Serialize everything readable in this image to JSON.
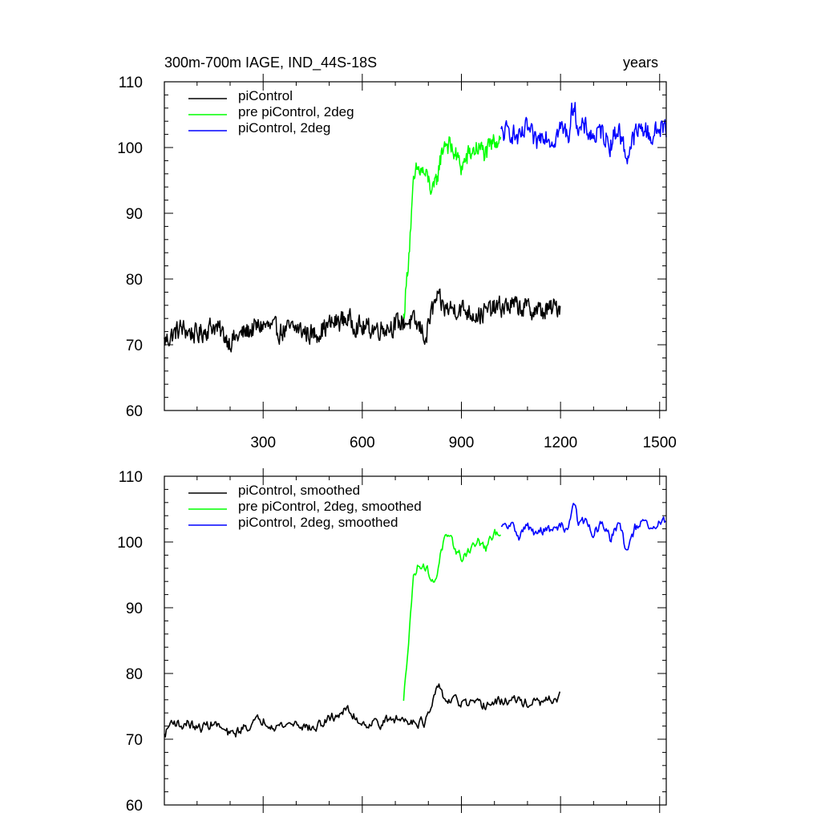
{
  "chart_data": [
    {
      "type": "line",
      "title": "300m-700m IAGE, IND_44S-18S",
      "right_title": "years",
      "xlim": [
        1,
        1520
      ],
      "ylim": [
        60,
        110
      ],
      "xticks": [
        300,
        600,
        900,
        1200,
        1500
      ],
      "yticks": [
        60,
        70,
        80,
        90,
        100,
        110
      ],
      "show_x_tick_labels": true,
      "grid": false,
      "legend_position": "top-left",
      "series": [
        {
          "name": "piControl",
          "color": "#000000",
          "x": [
            1,
            50,
            100,
            150,
            200,
            250,
            300,
            350,
            400,
            450,
            500,
            550,
            600,
            650,
            700,
            725,
            750,
            775,
            795,
            800,
            825,
            850,
            900,
            950,
            1000,
            1050,
            1100,
            1150,
            1200
          ],
          "y": [
            70.5,
            72.5,
            71.5,
            73,
            70.5,
            72,
            73,
            72,
            72.5,
            71.5,
            73,
            74,
            72.5,
            72.5,
            73,
            73.5,
            73.5,
            72.5,
            71,
            73.5,
            77,
            75.5,
            75.5,
            74.5,
            75.5,
            76,
            75.5,
            75,
            76
          ]
        },
        {
          "name": "pre piControl, 2deg",
          "color": "#00ff00",
          "x": [
            725,
            735,
            745,
            755,
            765,
            780,
            800,
            815,
            825,
            835,
            850,
            875,
            900,
            925,
            950,
            975,
            1000,
            1020
          ],
          "y": [
            74,
            80,
            87,
            94,
            96.5,
            96.5,
            95,
            93,
            95,
            98,
            101,
            99.5,
            97,
            99,
            100,
            99,
            101,
            102
          ]
        },
        {
          "name": "piControl, 2deg",
          "color": "#0000ff",
          "x": [
            1020,
            1050,
            1075,
            1100,
            1125,
            1150,
            1175,
            1200,
            1225,
            1240,
            1255,
            1275,
            1300,
            1325,
            1350,
            1375,
            1400,
            1425,
            1450,
            1475,
            1500,
            1520
          ],
          "y": [
            102,
            102.5,
            101,
            103,
            100.5,
            102.5,
            101,
            103,
            102,
            107,
            102.5,
            103,
            101.5,
            102.5,
            100.5,
            103,
            98.5,
            102,
            103,
            101.5,
            103,
            103
          ]
        }
      ]
    },
    {
      "type": "line",
      "title": "",
      "xlim": [
        1,
        1520
      ],
      "ylim": [
        60,
        110
      ],
      "xticks": [
        300,
        600,
        900,
        1200,
        1500
      ],
      "yticks": [
        60,
        70,
        80,
        90,
        100,
        110
      ],
      "show_x_tick_labels": false,
      "grid": false,
      "legend_position": "top-left",
      "series": [
        {
          "name": "piControl, smoothed",
          "color": "#000000",
          "x": [
            1,
            25,
            50,
            75,
            100,
            150,
            200,
            250,
            300,
            350,
            400,
            450,
            500,
            550,
            600,
            650,
            700,
            750,
            790,
            800,
            825,
            835,
            850,
            900,
            950,
            1000,
            1050,
            1100,
            1150,
            1200
          ],
          "y": [
            70.5,
            73,
            72,
            72.5,
            71.5,
            72.5,
            70.5,
            72,
            73,
            72,
            72.5,
            71.5,
            73,
            74.5,
            72.5,
            72.5,
            73,
            73,
            72.5,
            73.5,
            77,
            78,
            76,
            75.5,
            75,
            75.5,
            76,
            75.5,
            75.5,
            76.5
          ]
        },
        {
          "name": "pre piControl, 2deg, smoothed",
          "color": "#00ff00",
          "x": [
            725,
            735,
            745,
            755,
            765,
            780,
            800,
            815,
            825,
            835,
            850,
            875,
            900,
            925,
            950,
            975,
            1000,
            1020
          ],
          "y": [
            75.5,
            82,
            89,
            94.5,
            96,
            97,
            95.5,
            93.5,
            95,
            98,
            100.5,
            99.5,
            97.5,
            99,
            100,
            99,
            101,
            102
          ]
        },
        {
          "name": "piControl, 2deg, smoothed",
          "color": "#0000ff",
          "x": [
            1020,
            1050,
            1075,
            1100,
            1125,
            1150,
            1175,
            1200,
            1225,
            1240,
            1255,
            1275,
            1300,
            1325,
            1350,
            1375,
            1400,
            1425,
            1450,
            1475,
            1500,
            1520
          ],
          "y": [
            102,
            102.5,
            101,
            102.5,
            101,
            102,
            101.5,
            102.5,
            102,
            107,
            102.5,
            103,
            101.5,
            102.5,
            100.5,
            103,
            98.5,
            102,
            103,
            101.5,
            103,
            103
          ]
        }
      ]
    }
  ]
}
